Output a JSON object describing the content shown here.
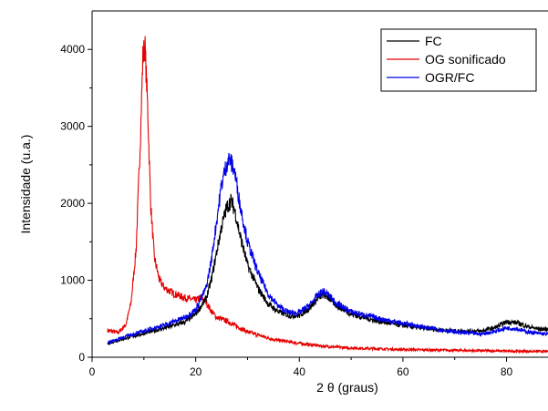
{
  "chart_data": {
    "type": "line",
    "xlabel": "2 θ (graus)",
    "ylabel": "Intensidade (u.a.)",
    "xlim": [
      0,
      88
    ],
    "ylim": [
      0,
      4500
    ],
    "xticks": [
      0,
      20,
      40,
      60,
      80
    ],
    "yticks": [
      0,
      1000,
      2000,
      3000,
      4000
    ],
    "grid": false,
    "legend_position": "top-right",
    "series": [
      {
        "name": "FC",
        "color": "#000000",
        "x": [
          3,
          6,
          10,
          14,
          18,
          20,
          22,
          23,
          24,
          25,
          26,
          26.8,
          27.5,
          28.5,
          30,
          32,
          34,
          36,
          38,
          40,
          42,
          43.5,
          44.5,
          45.5,
          47,
          50,
          55,
          60,
          65,
          70,
          75,
          78,
          80,
          82,
          84,
          86,
          88
        ],
        "y": [
          180,
          240,
          310,
          380,
          460,
          560,
          760,
          1000,
          1350,
          1700,
          1950,
          2030,
          1920,
          1600,
          1200,
          900,
          690,
          590,
          540,
          540,
          640,
          760,
          810,
          780,
          680,
          560,
          470,
          410,
          370,
          340,
          340,
          390,
          460,
          450,
          400,
          370,
          360
        ]
      },
      {
        "name": "OG sonificado",
        "color": "#e60000",
        "x": [
          3,
          5,
          6.5,
          7.5,
          8.5,
          9.3,
          9.8,
          10.2,
          10.7,
          11.3,
          12,
          13,
          14,
          16,
          18,
          20,
          21,
          22,
          23,
          24,
          26,
          28,
          30,
          35,
          40,
          45,
          50,
          60,
          70,
          80,
          88
        ],
        "y": [
          350,
          320,
          420,
          700,
          1400,
          2800,
          3900,
          4050,
          3300,
          2000,
          1300,
          1000,
          900,
          820,
          770,
          740,
          780,
          720,
          600,
          520,
          470,
          400,
          330,
          230,
          180,
          140,
          120,
          100,
          90,
          80,
          75
        ]
      },
      {
        "name": "OGR/FC",
        "color": "#0000e6",
        "x": [
          3,
          6,
          10,
          14,
          18,
          20,
          22,
          23,
          24,
          25,
          26,
          26.5,
          27.5,
          28.5,
          30,
          32,
          34,
          36,
          38,
          40,
          42,
          43.5,
          44.5,
          45.5,
          47,
          50,
          55,
          60,
          65,
          70,
          75,
          78,
          80,
          82,
          84,
          86,
          88
        ],
        "y": [
          190,
          260,
          340,
          420,
          520,
          620,
          900,
          1250,
          1750,
          2250,
          2520,
          2580,
          2420,
          2000,
          1500,
          1100,
          820,
          660,
          580,
          580,
          680,
          800,
          860,
          820,
          710,
          590,
          510,
          440,
          380,
          330,
          300,
          340,
          380,
          370,
          330,
          310,
          300
        ]
      }
    ]
  }
}
